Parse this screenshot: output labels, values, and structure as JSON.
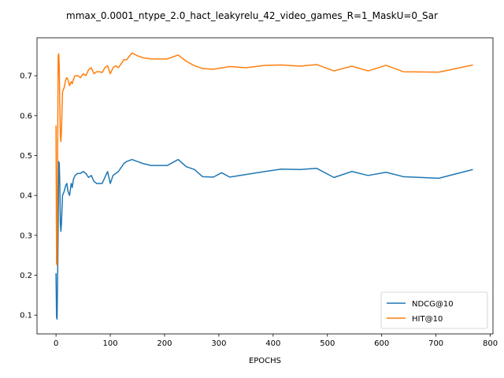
{
  "chart_data": {
    "type": "line",
    "title": "mmax_0.0001_ntype_2.0_hact_leakyrelu_42_video_games_R=1_MaskU=0_Sar",
    "xlabel": "EPOCHS",
    "ylabel": "",
    "xlim": [
      -35,
      805
    ],
    "ylim": [
      0.053,
      0.795
    ],
    "xticks": [
      0,
      100,
      200,
      300,
      400,
      500,
      600,
      700,
      800
    ],
    "yticks": [
      0.1,
      0.2,
      0.3,
      0.4,
      0.5,
      0.6,
      0.7
    ],
    "legend_position": "lower-right",
    "series": [
      {
        "name": "NDCG@10",
        "color": "#1f77b4",
        "points": [
          [
            0,
            0.205
          ],
          [
            1,
            0.095
          ],
          [
            2,
            0.09
          ],
          [
            3,
            0.2
          ],
          [
            4,
            0.32
          ],
          [
            5,
            0.485
          ],
          [
            6,
            0.48
          ],
          [
            7,
            0.43
          ],
          [
            8,
            0.33
          ],
          [
            9,
            0.31
          ],
          [
            10,
            0.33
          ],
          [
            12,
            0.4
          ],
          [
            15,
            0.41
          ],
          [
            18,
            0.425
          ],
          [
            20,
            0.43
          ],
          [
            22,
            0.41
          ],
          [
            25,
            0.4
          ],
          [
            28,
            0.43
          ],
          [
            30,
            0.42
          ],
          [
            32,
            0.44
          ],
          [
            35,
            0.45
          ],
          [
            40,
            0.455
          ],
          [
            45,
            0.455
          ],
          [
            50,
            0.46
          ],
          [
            55,
            0.455
          ],
          [
            60,
            0.445
          ],
          [
            65,
            0.45
          ],
          [
            70,
            0.435
          ],
          [
            75,
            0.43
          ],
          [
            80,
            0.43
          ],
          [
            85,
            0.43
          ],
          [
            90,
            0.445
          ],
          [
            95,
            0.46
          ],
          [
            100,
            0.43
          ],
          [
            105,
            0.45
          ],
          [
            110,
            0.455
          ],
          [
            115,
            0.46
          ],
          [
            120,
            0.47
          ],
          [
            125,
            0.48
          ],
          [
            130,
            0.485
          ],
          [
            140,
            0.49
          ],
          [
            150,
            0.485
          ],
          [
            160,
            0.48
          ],
          [
            175,
            0.475
          ],
          [
            190,
            0.475
          ],
          [
            205,
            0.475
          ],
          [
            225,
            0.49
          ],
          [
            240,
            0.472
          ],
          [
            255,
            0.465
          ],
          [
            270,
            0.447
          ],
          [
            290,
            0.446
          ],
          [
            305,
            0.457
          ],
          [
            320,
            0.446
          ],
          [
            385,
            0.46
          ],
          [
            415,
            0.466
          ],
          [
            450,
            0.465
          ],
          [
            480,
            0.468
          ],
          [
            512,
            0.445
          ],
          [
            545,
            0.46
          ],
          [
            575,
            0.45
          ],
          [
            608,
            0.458
          ],
          [
            640,
            0.447
          ],
          [
            705,
            0.443
          ],
          [
            768,
            0.465
          ]
        ]
      },
      {
        "name": "HIT@10",
        "color": "#ff7f0e",
        "points": [
          [
            0,
            0.575
          ],
          [
            1,
            0.23
          ],
          [
            2,
            0.225
          ],
          [
            3,
            0.5
          ],
          [
            4,
            0.75
          ],
          [
            5,
            0.755
          ],
          [
            6,
            0.72
          ],
          [
            7,
            0.63
          ],
          [
            8,
            0.55
          ],
          [
            9,
            0.535
          ],
          [
            10,
            0.56
          ],
          [
            12,
            0.66
          ],
          [
            15,
            0.67
          ],
          [
            18,
            0.69
          ],
          [
            20,
            0.695
          ],
          [
            22,
            0.69
          ],
          [
            25,
            0.675
          ],
          [
            28,
            0.685
          ],
          [
            30,
            0.68
          ],
          [
            32,
            0.69
          ],
          [
            35,
            0.7
          ],
          [
            40,
            0.7
          ],
          [
            45,
            0.695
          ],
          [
            50,
            0.705
          ],
          [
            55,
            0.7
          ],
          [
            60,
            0.715
          ],
          [
            65,
            0.72
          ],
          [
            70,
            0.705
          ],
          [
            75,
            0.71
          ],
          [
            80,
            0.71
          ],
          [
            85,
            0.708
          ],
          [
            90,
            0.72
          ],
          [
            95,
            0.725
          ],
          [
            100,
            0.705
          ],
          [
            105,
            0.72
          ],
          [
            110,
            0.725
          ],
          [
            115,
            0.72
          ],
          [
            120,
            0.73
          ],
          [
            125,
            0.74
          ],
          [
            130,
            0.74
          ],
          [
            140,
            0.757
          ],
          [
            150,
            0.75
          ],
          [
            160,
            0.745
          ],
          [
            175,
            0.742
          ],
          [
            190,
            0.742
          ],
          [
            205,
            0.742
          ],
          [
            225,
            0.752
          ],
          [
            240,
            0.736
          ],
          [
            255,
            0.725
          ],
          [
            270,
            0.718
          ],
          [
            290,
            0.716
          ],
          [
            320,
            0.723
          ],
          [
            350,
            0.72
          ],
          [
            385,
            0.726
          ],
          [
            415,
            0.727
          ],
          [
            450,
            0.724
          ],
          [
            480,
            0.728
          ],
          [
            512,
            0.712
          ],
          [
            545,
            0.724
          ],
          [
            575,
            0.712
          ],
          [
            608,
            0.726
          ],
          [
            640,
            0.71
          ],
          [
            705,
            0.709
          ],
          [
            768,
            0.727
          ]
        ]
      }
    ]
  }
}
